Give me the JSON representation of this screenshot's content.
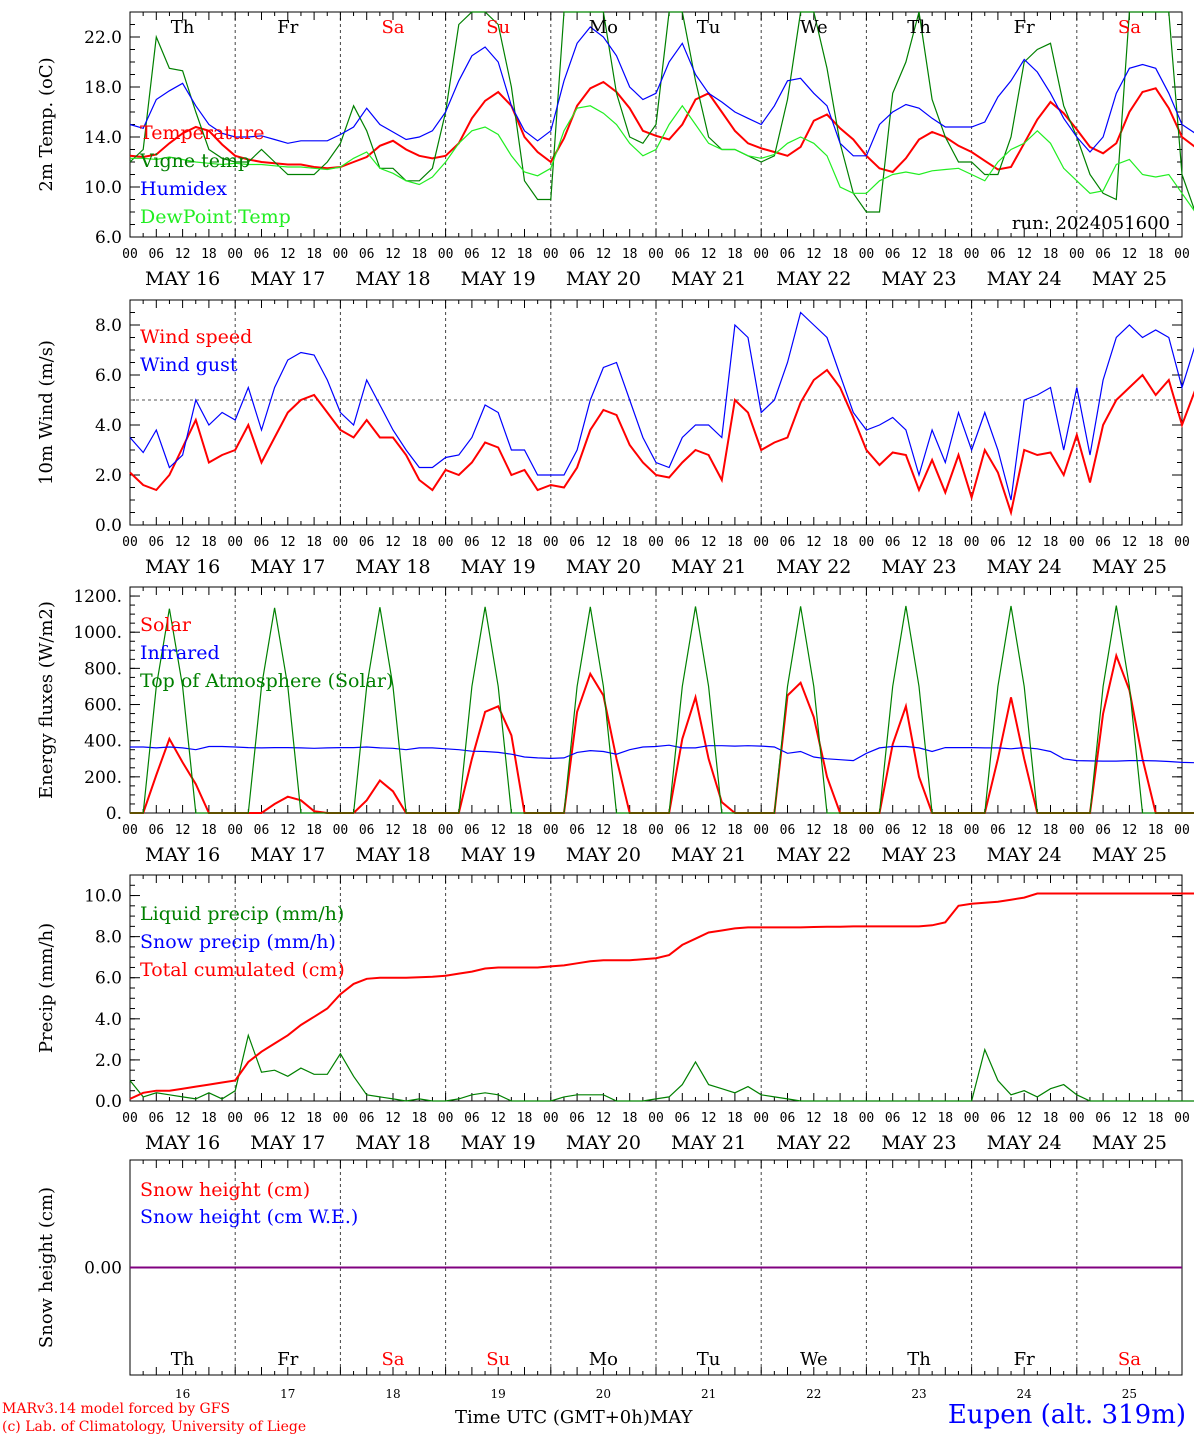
{
  "days": [
    "Th",
    "Fr",
    "Sa",
    "Su",
    "Mo",
    "Tu",
    "We",
    "Th",
    "Fr",
    "Sa"
  ],
  "weekend_days": [
    2,
    3,
    9
  ],
  "dates": [
    "MAY 16",
    "MAY 17",
    "MAY 18",
    "MAY 19",
    "MAY 20",
    "MAY 21",
    "MAY 22",
    "MAY 23",
    "MAY 24",
    "MAY 25"
  ],
  "hour_ticks": [
    "00",
    "06",
    "12",
    "18"
  ],
  "last_hour_tick": "00",
  "bottom_day_numbers": [
    "16",
    "17",
    "18",
    "19",
    "20",
    "21",
    "22",
    "23",
    "24",
    "25"
  ],
  "time_axis_label": "Time UTC (GMT+0h)",
  "month_label": "MAY",
  "credit_line1": "MARv3.14 model forced by GFS",
  "credit_line2": "(c) Lab. of Climatology, University of Liege",
  "station": "Eupen (alt. 319m)",
  "colors": {
    "red": "#ff0000",
    "green": "#008000",
    "blue": "#0000ff",
    "lightgreen": "#22ee22",
    "purple": "#800080",
    "grid": "#555555"
  },
  "chart_data": [
    {
      "type": "line",
      "ylabel": "2m Temp. (oC)",
      "ylim": [
        6,
        24
      ],
      "yticks": [
        "6.0",
        "10.0",
        "14.0",
        "18.0",
        "22.0"
      ],
      "annotation": "run: 2024051600",
      "x_hours_step": 3,
      "series": [
        {
          "name": "Temperature",
          "color": "red",
          "values": [
            12.5,
            12.4,
            12.6,
            13.5,
            14.3,
            14.8,
            14.5,
            13.4,
            12.5,
            12.2,
            12.0,
            11.9,
            11.8,
            11.8,
            11.6,
            11.5,
            11.6,
            12.0,
            12.4,
            13.3,
            13.7,
            13.0,
            12.5,
            12.3,
            12.5,
            13.5,
            15.5,
            16.9,
            17.6,
            16.5,
            14.0,
            12.8,
            12.0,
            13.9,
            16.5,
            17.9,
            18.4,
            17.6,
            16.3,
            14.5,
            14.1,
            13.8,
            15.0,
            17.0,
            17.5,
            16.0,
            14.5,
            13.5,
            13.1,
            12.8,
            12.5,
            13.2,
            15.3,
            15.8,
            14.7,
            13.8,
            12.5,
            11.5,
            11.2,
            12.3,
            13.8,
            14.4,
            14.0,
            13.3,
            12.8,
            12.1,
            11.4,
            11.6,
            13.5,
            15.4,
            16.8,
            15.9,
            14.6,
            13.2,
            12.7,
            13.5,
            16.0,
            17.6,
            17.9,
            16.3,
            14.0,
            13.2
          ]
        },
        {
          "name": "Vigne temp",
          "color": "green",
          "values": [
            12.0,
            13.0,
            22.0,
            19.5,
            19.3,
            16.0,
            13.0,
            12.3,
            12.0,
            12.0,
            13.0,
            12.0,
            11.0,
            11.0,
            11.0,
            12.0,
            13.5,
            16.5,
            14.5,
            11.5,
            11.5,
            10.5,
            10.5,
            11.5,
            16.0,
            23.0,
            24.0,
            24.0,
            23.0,
            18.0,
            10.5,
            9.0,
            9.0,
            24.0,
            24.0,
            24.0,
            24.0,
            17.5,
            14.0,
            13.5,
            15.0,
            24.0,
            24.0,
            18.5,
            14.0,
            13.0,
            13.0,
            12.5,
            12.0,
            12.5,
            17.0,
            24.0,
            24.0,
            19.5,
            13.5,
            9.5,
            8.0,
            8.0,
            17.5,
            20.0,
            24.0,
            17.0,
            14.0,
            12.0,
            12.0,
            11.0,
            11.0,
            14.0,
            20.0,
            21.0,
            21.5,
            16.5,
            14.0,
            11.0,
            9.5,
            9.0,
            24.0,
            24.0,
            24.0,
            24.0,
            11.0,
            8.0
          ]
        },
        {
          "name": "Humidex",
          "color": "blue",
          "values": [
            15.0,
            14.7,
            17.0,
            17.7,
            18.3,
            16.5,
            15.0,
            14.3,
            14.0,
            14.0,
            14.1,
            13.8,
            13.5,
            13.7,
            13.7,
            13.7,
            14.2,
            14.8,
            16.3,
            15.0,
            14.4,
            13.8,
            14.0,
            14.5,
            16.0,
            18.5,
            20.5,
            21.2,
            20.0,
            16.5,
            14.5,
            13.7,
            14.5,
            18.5,
            21.5,
            22.8,
            22.0,
            20.5,
            18.0,
            17.0,
            17.5,
            20.0,
            21.5,
            19.0,
            17.5,
            16.8,
            16.0,
            15.5,
            15.0,
            16.5,
            18.5,
            18.7,
            17.5,
            16.5,
            13.5,
            12.5,
            12.5,
            15.0,
            16.0,
            16.6,
            16.3,
            15.5,
            14.8,
            14.8,
            14.8,
            15.2,
            17.2,
            18.5,
            20.2,
            19.2,
            17.5,
            15.5,
            14.0,
            12.8,
            14.0,
            17.5,
            19.5,
            19.8,
            19.5,
            17.5,
            15.0,
            14.3
          ]
        },
        {
          "name": "DewPoint Temp",
          "color": "lightgreen",
          "values": [
            12.3,
            12.3,
            12.2,
            12.4,
            12.2,
            12.0,
            11.9,
            11.8,
            11.9,
            11.8,
            11.8,
            11.7,
            11.6,
            11.6,
            11.5,
            11.4,
            11.6,
            12.3,
            12.8,
            11.5,
            11.1,
            10.5,
            10.2,
            10.8,
            12.0,
            13.5,
            14.5,
            14.8,
            14.2,
            12.5,
            11.2,
            10.9,
            11.5,
            14.5,
            16.3,
            16.5,
            15.9,
            15.0,
            13.5,
            12.5,
            13.0,
            15.0,
            16.5,
            15.0,
            13.5,
            13.0,
            13.0,
            12.5,
            12.3,
            12.6,
            13.5,
            14.0,
            13.5,
            12.5,
            10.0,
            9.5,
            9.5,
            10.5,
            11.0,
            11.2,
            11.0,
            11.3,
            11.4,
            11.5,
            11.0,
            10.5,
            12.0,
            13.0,
            13.5,
            14.5,
            13.5,
            11.5,
            10.5,
            9.5,
            9.7,
            11.8,
            12.2,
            11.0,
            10.8,
            11.0,
            9.5,
            8.0
          ]
        }
      ]
    },
    {
      "type": "line",
      "ylabel": "10m Wind (m/s)",
      "ylim": [
        0,
        9
      ],
      "yticks": [
        "0.0",
        "2.0",
        "4.0",
        "6.0",
        "8.0"
      ],
      "hline": 5,
      "x_hours_step": 3,
      "series": [
        {
          "name": "Wind speed",
          "color": "red",
          "values": [
            2.1,
            1.6,
            1.4,
            2.0,
            3.1,
            4.2,
            2.5,
            2.8,
            3.0,
            4.0,
            2.5,
            3.5,
            4.5,
            5.0,
            5.2,
            4.5,
            3.8,
            3.5,
            4.2,
            3.5,
            3.5,
            2.8,
            1.8,
            1.4,
            2.2,
            2.0,
            2.5,
            3.3,
            3.1,
            2.0,
            2.2,
            1.4,
            1.6,
            1.5,
            2.3,
            3.8,
            4.6,
            4.4,
            3.2,
            2.5,
            2.0,
            1.9,
            2.5,
            3.0,
            2.8,
            1.8,
            5.0,
            4.5,
            3.0,
            3.3,
            3.5,
            4.9,
            5.8,
            6.2,
            5.5,
            4.3,
            3.0,
            2.4,
            2.9,
            2.8,
            1.4,
            2.6,
            1.3,
            2.8,
            1.1,
            3.0,
            2.1,
            0.5,
            3.0,
            2.8,
            2.9,
            2.0,
            3.6,
            1.7,
            4.0,
            5.0,
            5.5,
            6.0,
            5.2,
            5.8,
            4.0,
            5.4
          ]
        },
        {
          "name": "Wind gust",
          "color": "blue",
          "values": [
            3.5,
            2.9,
            3.8,
            2.3,
            2.8,
            5.0,
            4.0,
            4.5,
            4.2,
            5.5,
            3.8,
            5.5,
            6.6,
            6.9,
            6.8,
            5.8,
            4.5,
            4.0,
            5.8,
            4.8,
            3.8,
            3.0,
            2.3,
            2.3,
            2.7,
            2.8,
            3.5,
            4.8,
            4.5,
            3.0,
            3.0,
            2.0,
            2.0,
            2.0,
            3.0,
            5.0,
            6.3,
            6.5,
            5.0,
            3.5,
            2.5,
            2.3,
            3.5,
            4.0,
            4.0,
            3.5,
            8.0,
            7.5,
            4.5,
            5.0,
            6.5,
            8.5,
            8.0,
            7.5,
            6.0,
            4.5,
            3.8,
            4.0,
            4.3,
            3.8,
            2.0,
            3.8,
            2.5,
            4.5,
            3.0,
            4.5,
            3.0,
            1.0,
            5.0,
            5.2,
            5.5,
            3.0,
            5.5,
            2.8,
            5.8,
            7.5,
            8.0,
            7.5,
            7.8,
            7.5,
            5.5,
            7.2
          ]
        }
      ]
    },
    {
      "type": "line",
      "ylabel": "Energy fluxes (W/m2)",
      "ylim": [
        0,
        1250
      ],
      "yticks": [
        "0.",
        "200.",
        "400.",
        "600.",
        "800.",
        "1000.",
        "1200."
      ],
      "x_hours_step": 3,
      "series": [
        {
          "name": "Solar",
          "color": "red",
          "values": [
            0,
            0,
            210,
            410,
            280,
            160,
            0,
            0,
            0,
            0,
            0,
            50,
            90,
            70,
            10,
            0,
            0,
            0,
            70,
            180,
            120,
            0,
            0,
            0,
            0,
            0,
            300,
            560,
            590,
            430,
            0,
            0,
            0,
            0,
            560,
            770,
            650,
            300,
            0,
            0,
            0,
            0,
            410,
            640,
            300,
            60,
            0,
            0,
            0,
            0,
            650,
            720,
            530,
            200,
            0,
            0,
            0,
            0,
            380,
            590,
            200,
            0,
            0,
            0,
            0,
            0,
            300,
            640,
            300,
            0,
            0,
            0,
            0,
            0,
            550,
            870,
            680,
            300,
            0,
            0,
            0,
            0
          ]
        },
        {
          "name": "Infrared",
          "color": "blue",
          "values": [
            365,
            365,
            360,
            365,
            360,
            350,
            368,
            368,
            365,
            362,
            360,
            362,
            362,
            360,
            358,
            360,
            362,
            362,
            365,
            360,
            358,
            350,
            360,
            360,
            355,
            350,
            342,
            340,
            335,
            325,
            310,
            305,
            302,
            305,
            335,
            345,
            340,
            325,
            350,
            365,
            368,
            375,
            360,
            360,
            372,
            372,
            370,
            372,
            370,
            365,
            330,
            340,
            310,
            300,
            295,
            290,
            330,
            360,
            368,
            368,
            360,
            340,
            362,
            362,
            362,
            360,
            360,
            355,
            362,
            355,
            340,
            300,
            290,
            288,
            287,
            287,
            290,
            290,
            288,
            285,
            280,
            278
          ]
        },
        {
          "name": "Top of Atmosphere (Solar)",
          "color": "green",
          "values": [
            0,
            0,
            700,
            1130,
            700,
            0,
            0,
            0,
            0,
            0,
            700,
            1135,
            700,
            0,
            0,
            0,
            0,
            0,
            700,
            1138,
            700,
            0,
            0,
            0,
            0,
            0,
            700,
            1140,
            700,
            0,
            0,
            0,
            0,
            0,
            700,
            1140,
            700,
            0,
            0,
            0,
            0,
            0,
            700,
            1142,
            700,
            0,
            0,
            0,
            0,
            0,
            700,
            1143,
            700,
            0,
            0,
            0,
            0,
            0,
            700,
            1145,
            700,
            0,
            0,
            0,
            0,
            0,
            700,
            1145,
            700,
            0,
            0,
            0,
            0,
            0,
            700,
            1147,
            700,
            0,
            0,
            0,
            0,
            0
          ]
        }
      ]
    },
    {
      "type": "line",
      "ylabel": "Precip (mm/h)",
      "ylim": [
        0,
        11
      ],
      "yticks": [
        "0.0",
        "2.0",
        "4.0",
        "6.0",
        "8.0",
        "10.0"
      ],
      "x_hours_step": 3,
      "series": [
        {
          "name": "Liquid precip (mm/h)",
          "color": "green",
          "values": [
            1.0,
            0.2,
            0.4,
            0.3,
            0.2,
            0.1,
            0.4,
            0.1,
            0.5,
            3.2,
            1.4,
            1.5,
            1.2,
            1.6,
            1.3,
            1.3,
            2.3,
            1.2,
            0.3,
            0.2,
            0.1,
            0.0,
            0.1,
            0.0,
            0.0,
            0.1,
            0.3,
            0.4,
            0.3,
            0.0,
            0.0,
            0.0,
            0.0,
            0.2,
            0.3,
            0.3,
            0.3,
            0.0,
            0.0,
            0.0,
            0.1,
            0.2,
            0.8,
            1.9,
            0.8,
            0.6,
            0.4,
            0.7,
            0.3,
            0.2,
            0.1,
            0.0,
            0.0,
            0.0,
            0.0,
            0.0,
            0.0,
            0.0,
            0.0,
            0.0,
            0.0,
            0.0,
            0.0,
            0.0,
            0.0,
            2.5,
            1.0,
            0.3,
            0.5,
            0.2,
            0.6,
            0.8,
            0.3,
            0.0,
            0.0,
            0.0,
            0.0,
            0.0,
            0.0,
            0.0,
            0.0,
            0.0
          ]
        },
        {
          "name": "Snow precip (mm/h)",
          "color": "blue",
          "values": []
        },
        {
          "name": "Total cumulated (cm)",
          "color": "red",
          "values": [
            0.1,
            0.4,
            0.5,
            0.5,
            0.6,
            0.7,
            0.8,
            0.9,
            1.0,
            1.9,
            2.4,
            2.8,
            3.2,
            3.7,
            4.1,
            4.5,
            5.2,
            5.7,
            5.95,
            6.0,
            6.0,
            6.0,
            6.02,
            6.05,
            6.1,
            6.2,
            6.3,
            6.45,
            6.5,
            6.5,
            6.5,
            6.5,
            6.55,
            6.6,
            6.7,
            6.8,
            6.85,
            6.85,
            6.85,
            6.9,
            6.95,
            7.1,
            7.6,
            7.9,
            8.2,
            8.3,
            8.4,
            8.45,
            8.45,
            8.45,
            8.45,
            8.45,
            8.47,
            8.48,
            8.48,
            8.5,
            8.5,
            8.5,
            8.5,
            8.5,
            8.5,
            8.55,
            8.7,
            9.5,
            9.6,
            9.65,
            9.7,
            9.8,
            9.9,
            10.1,
            10.1,
            10.1,
            10.1,
            10.1,
            10.1,
            10.1,
            10.1,
            10.1,
            10.1,
            10.1,
            10.1,
            10.1
          ]
        }
      ]
    },
    {
      "type": "line",
      "ylabel": "Snow height (cm)",
      "ylim": [
        -1,
        1
      ],
      "yticks": [
        "0.00"
      ],
      "x_hours_step": 3,
      "series": [
        {
          "name": "Snow height (cm)",
          "color": "red",
          "values": [
            0,
            0
          ]
        },
        {
          "name": "Snow height (cm W.E.)",
          "color": "blue",
          "values": [
            0,
            0
          ]
        }
      ]
    }
  ]
}
